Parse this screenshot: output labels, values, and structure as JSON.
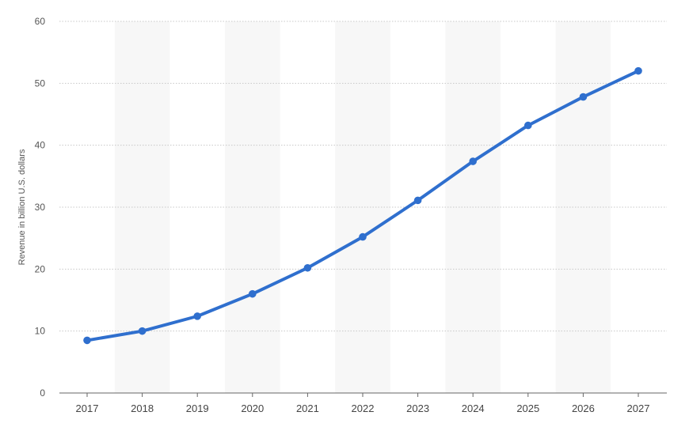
{
  "chart_data": {
    "type": "line",
    "title": "",
    "xlabel": "",
    "ylabel": "Revenue in billion U.S. dollars",
    "categories": [
      "2017",
      "2018",
      "2019",
      "2020",
      "2021",
      "2022",
      "2023",
      "2024",
      "2025",
      "2026",
      "2027"
    ],
    "series": [
      {
        "values": [
          8.5,
          10.0,
          12.4,
          16.0,
          20.2,
          25.2,
          31.1,
          37.4,
          43.2,
          47.8,
          52.0
        ]
      }
    ],
    "ylim": [
      0,
      60
    ],
    "yticks": [
      0,
      10,
      20,
      30,
      40,
      50,
      60
    ],
    "grid": true,
    "legend": "none",
    "colors": {
      "line": "#2f6fce",
      "band": "#f7f7f7",
      "grid": "#c8c8c8",
      "axis": "#666666"
    }
  }
}
